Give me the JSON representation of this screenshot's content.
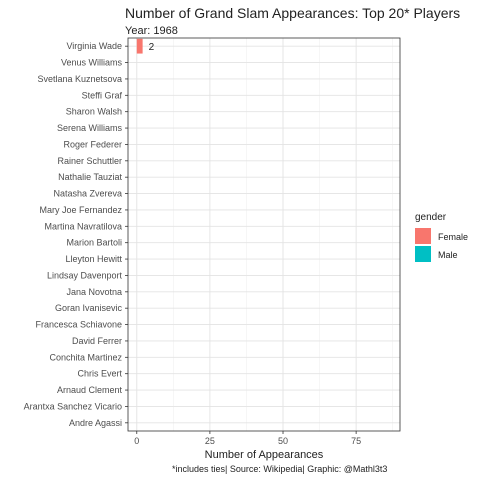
{
  "chart_data": {
    "type": "bar",
    "orientation": "horizontal",
    "title": "Number of Grand Slam Appearances: Top 20* Players",
    "subtitle": "Year: 1968",
    "xlabel": "Number of Appearances",
    "xlim": [
      -3,
      90
    ],
    "xticks": [
      0,
      25,
      50,
      75
    ],
    "grid": true,
    "legend_title": "gender",
    "legend_position": "right",
    "caption": "*includes ties| Source: Wikipedia| Graphic: @Mathl3t3",
    "series": [
      {
        "name": "Female",
        "color": "#F8766D"
      },
      {
        "name": "Male",
        "color": "#00BFC4"
      }
    ],
    "bars": [
      {
        "name": "Virginia Wade",
        "value": 2,
        "gender": "Female",
        "label": "2"
      },
      {
        "name": "Venus Williams",
        "value": 0,
        "gender": "Female"
      },
      {
        "name": "Svetlana Kuznetsova",
        "value": 0,
        "gender": "Female"
      },
      {
        "name": "Steffi Graf",
        "value": 0,
        "gender": "Female"
      },
      {
        "name": "Sharon Walsh",
        "value": 0,
        "gender": "Female"
      },
      {
        "name": "Serena Williams",
        "value": 0,
        "gender": "Female"
      },
      {
        "name": "Roger Federer",
        "value": 0,
        "gender": "Male"
      },
      {
        "name": "Rainer Schuttler",
        "value": 0,
        "gender": "Male"
      },
      {
        "name": "Nathalie Tauziat",
        "value": 0,
        "gender": "Female"
      },
      {
        "name": "Natasha Zvereva",
        "value": 0,
        "gender": "Female"
      },
      {
        "name": "Mary Joe Fernandez",
        "value": 0,
        "gender": "Female"
      },
      {
        "name": "Martina Navratilova",
        "value": 0,
        "gender": "Female"
      },
      {
        "name": "Marion Bartoli",
        "value": 0,
        "gender": "Female"
      },
      {
        "name": "Lleyton Hewitt",
        "value": 0,
        "gender": "Male"
      },
      {
        "name": "Lindsay Davenport",
        "value": 0,
        "gender": "Female"
      },
      {
        "name": "Jana Novotna",
        "value": 0,
        "gender": "Female"
      },
      {
        "name": "Goran Ivanisevic",
        "value": 0,
        "gender": "Male"
      },
      {
        "name": "Francesca Schiavone",
        "value": 0,
        "gender": "Female"
      },
      {
        "name": "David Ferrer",
        "value": 0,
        "gender": "Male"
      },
      {
        "name": "Conchita Martinez",
        "value": 0,
        "gender": "Female"
      },
      {
        "name": "Chris Evert",
        "value": 0,
        "gender": "Female"
      },
      {
        "name": "Arnaud Clement",
        "value": 0,
        "gender": "Male"
      },
      {
        "name": "Arantxa Sanchez Vicario",
        "value": 0,
        "gender": "Female"
      },
      {
        "name": "Andre Agassi",
        "value": 0,
        "gender": "Male"
      }
    ]
  }
}
